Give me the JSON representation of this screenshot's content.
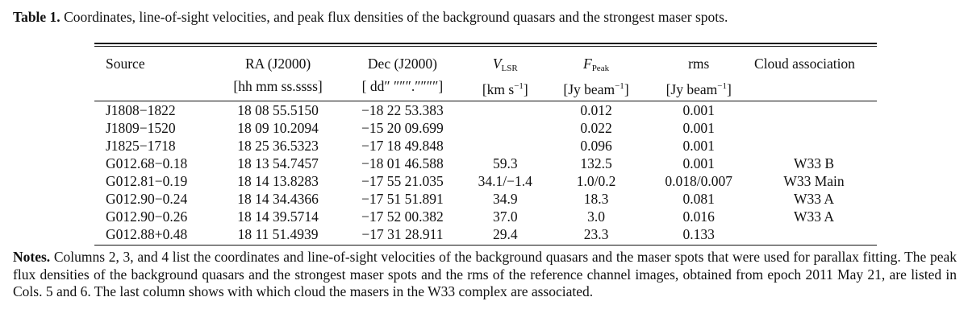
{
  "caption": {
    "label": "Table 1.",
    "text": "Coordinates, line-of-sight velocities, and peak flux densities of the background quasars and the strongest maser spots."
  },
  "table": {
    "headers": {
      "source": "Source",
      "ra": "RA (J2000)",
      "ra_unit": "[hh mm ss.ssss]",
      "dec": "Dec (J2000)",
      "dec_unit": "[ dd″ ″″″.″″″″]",
      "vlsr_sym": "V",
      "vlsr_sub": "LSR",
      "vlsr_unit_pre": "[km s",
      "vlsr_unit_sup": "−1",
      "vlsr_unit_post": "]",
      "fpeak_sym": "F",
      "fpeak_sub": "Peak",
      "fpeak_unit_pre": "[Jy beam",
      "fpeak_unit_sup": "−1",
      "fpeak_unit_post": "]",
      "rms": "rms",
      "rms_unit_pre": "[Jy beam",
      "rms_unit_sup": "−1",
      "rms_unit_post": "]",
      "cloud": "Cloud association"
    },
    "rows": [
      {
        "source": "J1808−1822",
        "ra": "18 08 55.5150",
        "dec": "−18 22 53.383",
        "vlsr": "",
        "fpeak": "0.012",
        "rms": "0.001",
        "cloud": ""
      },
      {
        "source": "J1809−1520",
        "ra": "18 09 10.2094",
        "dec": "−15 20 09.699",
        "vlsr": "",
        "fpeak": "0.022",
        "rms": "0.001",
        "cloud": ""
      },
      {
        "source": "J1825−1718",
        "ra": "18 25 36.5323",
        "dec": "−17 18 49.848",
        "vlsr": "",
        "fpeak": "0.096",
        "rms": "0.001",
        "cloud": ""
      },
      {
        "source": "G012.68−0.18",
        "ra": "18 13 54.7457",
        "dec": "−18 01 46.588",
        "vlsr": "59.3",
        "fpeak": "132.5",
        "rms": "0.001",
        "cloud": "W33 B"
      },
      {
        "source": "G012.81−0.19",
        "ra": "18 14 13.8283",
        "dec": "−17 55 21.035",
        "vlsr": "34.1/−1.4",
        "fpeak": "1.0/0.2",
        "rms": "0.018/0.007",
        "cloud": "W33 Main"
      },
      {
        "source": "G012.90−0.24",
        "ra": "18 14 34.4366",
        "dec": "−17 51 51.891",
        "vlsr": "34.9",
        "fpeak": "18.3",
        "rms": "0.081",
        "cloud": "W33 A"
      },
      {
        "source": "G012.90−0.26",
        "ra": "18 14 39.5714",
        "dec": "−17 52 00.382",
        "vlsr": "37.0",
        "fpeak": "3.0",
        "rms": "0.016",
        "cloud": "W33 A"
      },
      {
        "source": "G012.88+0.48",
        "ra": "18 11 51.4939",
        "dec": "−17 31 28.911",
        "vlsr": "29.4",
        "fpeak": "23.3",
        "rms": "0.133",
        "cloud": ""
      }
    ]
  },
  "notes": {
    "label": "Notes.",
    "text": "Columns 2, 3, and 4 list the coordinates and line-of-sight velocities of the background quasars and the maser spots that were used for parallax fitting. The peak flux densities of the background quasars and the strongest maser spots and the rms of the reference channel images, obtained from epoch 2011 May 21, are listed in Cols. 5 and 6. The last column shows with which cloud the masers in the W33 complex are associated."
  }
}
